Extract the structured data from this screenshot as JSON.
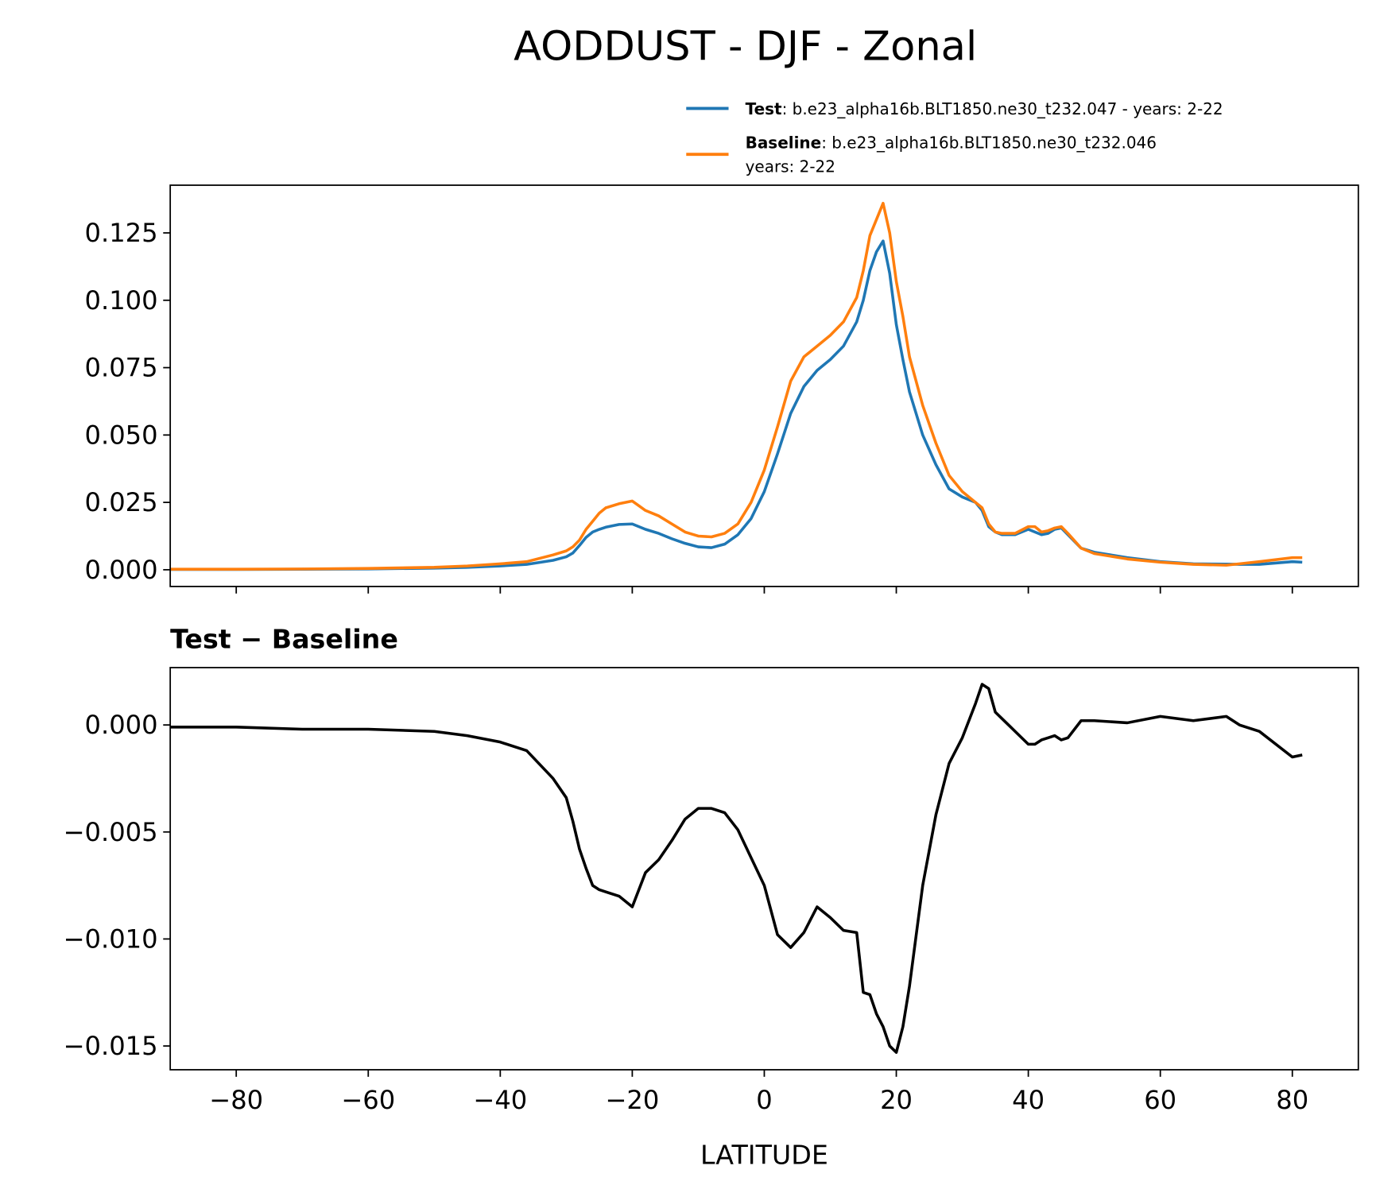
{
  "chart_data": [
    {
      "type": "line",
      "title": "AODDUST - DJF - Zonal",
      "x": [
        -90,
        -80,
        -70,
        -60,
        -50,
        -45,
        -40,
        -36,
        -32,
        -30,
        -29,
        -28,
        -27,
        -26,
        -25,
        -24,
        -22,
        -20,
        -18,
        -16,
        -14,
        -12,
        -10,
        -8,
        -6,
        -4,
        -2,
        0,
        2,
        4,
        6,
        8,
        10,
        12,
        14,
        15,
        16,
        17,
        18,
        19,
        20,
        21,
        22,
        24,
        26,
        28,
        30,
        32,
        33,
        34,
        35,
        36,
        38,
        40,
        41,
        42,
        43,
        44,
        45,
        46,
        48,
        50,
        55,
        60,
        65,
        70,
        72,
        75,
        80,
        81.5
      ],
      "series": [
        {
          "name": "Test",
          "description": [
            ": b.e23_alpha16b.BLT1850.ne30_t232.047 - years: 2-22"
          ],
          "color": "#1f77b4",
          "values": [
            0.0001,
            0.0001,
            0.0002,
            0.0003,
            0.0006,
            0.0009,
            0.0014,
            0.002,
            0.0035,
            0.0048,
            0.0062,
            0.009,
            0.012,
            0.014,
            0.015,
            0.0158,
            0.0168,
            0.017,
            0.015,
            0.0135,
            0.0115,
            0.0098,
            0.0085,
            0.0082,
            0.0095,
            0.013,
            0.019,
            0.029,
            0.043,
            0.058,
            0.068,
            0.074,
            0.078,
            0.083,
            0.092,
            0.1,
            0.111,
            0.118,
            0.122,
            0.11,
            0.091,
            0.078,
            0.066,
            0.05,
            0.039,
            0.03,
            0.027,
            0.025,
            0.022,
            0.016,
            0.014,
            0.013,
            0.013,
            0.015,
            0.014,
            0.013,
            0.0135,
            0.015,
            0.0155,
            0.013,
            0.008,
            0.0065,
            0.0045,
            0.003,
            0.0022,
            0.0021,
            0.002,
            0.002,
            0.003,
            0.0028
          ]
        },
        {
          "name": "Baseline",
          "description": [
            ": b.e23_alpha16b.BLT1850.ne30_t232.046",
            "years: 2-22"
          ],
          "color": "#ff7f0e",
          "values": [
            0.0002,
            0.0002,
            0.0003,
            0.0005,
            0.0009,
            0.0014,
            0.0022,
            0.003,
            0.0055,
            0.007,
            0.0085,
            0.011,
            0.015,
            0.018,
            0.021,
            0.023,
            0.0245,
            0.0255,
            0.022,
            0.02,
            0.017,
            0.014,
            0.0125,
            0.0122,
            0.0135,
            0.017,
            0.025,
            0.037,
            0.053,
            0.07,
            0.079,
            0.083,
            0.087,
            0.092,
            0.101,
            0.111,
            0.124,
            0.13,
            0.136,
            0.125,
            0.107,
            0.094,
            0.079,
            0.061,
            0.047,
            0.035,
            0.029,
            0.025,
            0.023,
            0.017,
            0.014,
            0.0135,
            0.0135,
            0.016,
            0.016,
            0.014,
            0.0145,
            0.0155,
            0.016,
            0.0135,
            0.008,
            0.006,
            0.004,
            0.0028,
            0.002,
            0.0017,
            0.0022,
            0.003,
            0.0045,
            0.0045
          ]
        }
      ],
      "xlim": [
        -90,
        90
      ],
      "xticks": [
        -80,
        -60,
        -40,
        -20,
        0,
        20,
        40,
        60,
        80
      ],
      "ylim": [
        -0.0062,
        0.1427
      ],
      "yticks": [
        {
          "value": 0,
          "label": "0.000"
        },
        0.025,
        {
          "value": 0.05,
          "label": "0.050"
        },
        0.075,
        {
          "value": 0.1,
          "label": "0.100"
        },
        0.125
      ]
    },
    {
      "type": "line",
      "subtitle": "Test − Baseline",
      "xlabel": "LATITUDE",
      "x": [
        -90,
        -80,
        -70,
        -60,
        -50,
        -45,
        -40,
        -36,
        -32,
        -30,
        -29,
        -28,
        -27,
        -26,
        -25,
        -24,
        -22,
        -20,
        -18,
        -16,
        -14,
        -12,
        -10,
        -8,
        -6,
        -4,
        -2,
        0,
        2,
        4,
        6,
        8,
        10,
        12,
        14,
        15,
        16,
        17,
        18,
        19,
        20,
        21,
        22,
        24,
        26,
        28,
        30,
        32,
        33,
        34,
        35,
        36,
        38,
        40,
        41,
        42,
        43,
        44,
        45,
        46,
        48,
        50,
        55,
        60,
        65,
        70,
        72,
        75,
        80,
        81.5
      ],
      "color": "#000000",
      "values": [
        -0.0001,
        -0.0001,
        -0.0002,
        -0.0002,
        -0.0003,
        -0.0005,
        -0.0008,
        -0.0012,
        -0.0025,
        -0.0034,
        -0.0045,
        -0.0058,
        -0.0067,
        -0.0075,
        -0.0077,
        -0.0078,
        -0.008,
        -0.0085,
        -0.0069,
        -0.0063,
        -0.0054,
        -0.0044,
        -0.0039,
        -0.0039,
        -0.0041,
        -0.0049,
        -0.0062,
        -0.0075,
        -0.0098,
        -0.0104,
        -0.0097,
        -0.0085,
        -0.009,
        -0.0096,
        -0.0097,
        -0.0125,
        -0.0126,
        -0.0135,
        -0.0141,
        -0.015,
        -0.0153,
        -0.0141,
        -0.0122,
        -0.0075,
        -0.0042,
        -0.0018,
        -0.0006,
        0.001,
        0.0019,
        0.0017,
        0.0006,
        0.0003,
        -0.0003,
        -0.0009,
        -0.0009,
        -0.0007,
        -0.0006,
        -0.0005,
        -0.0007,
        -0.0006,
        0.0002,
        0.0002,
        0.0001,
        0.0004,
        0.0002,
        0.0004,
        0,
        -0.0003,
        -0.0015,
        -0.0014
      ],
      "xlim": [
        -90,
        90
      ],
      "xticks": [
        {
          "value": -80,
          "label": "−80"
        },
        {
          "value": -60,
          "label": "−60"
        },
        {
          "value": -40,
          "label": "−40"
        },
        {
          "value": -20,
          "label": "−20"
        },
        0,
        20,
        40,
        60,
        80
      ],
      "ylim": [
        -0.01611,
        0.00268
      ],
      "yticks": [
        {
          "value": -0.015,
          "label": "−0.015"
        },
        {
          "value": -0.01,
          "label": "−0.010"
        },
        {
          "value": -0.005,
          "label": "−0.005"
        },
        {
          "value": 0,
          "label": "0.000"
        }
      ]
    }
  ]
}
